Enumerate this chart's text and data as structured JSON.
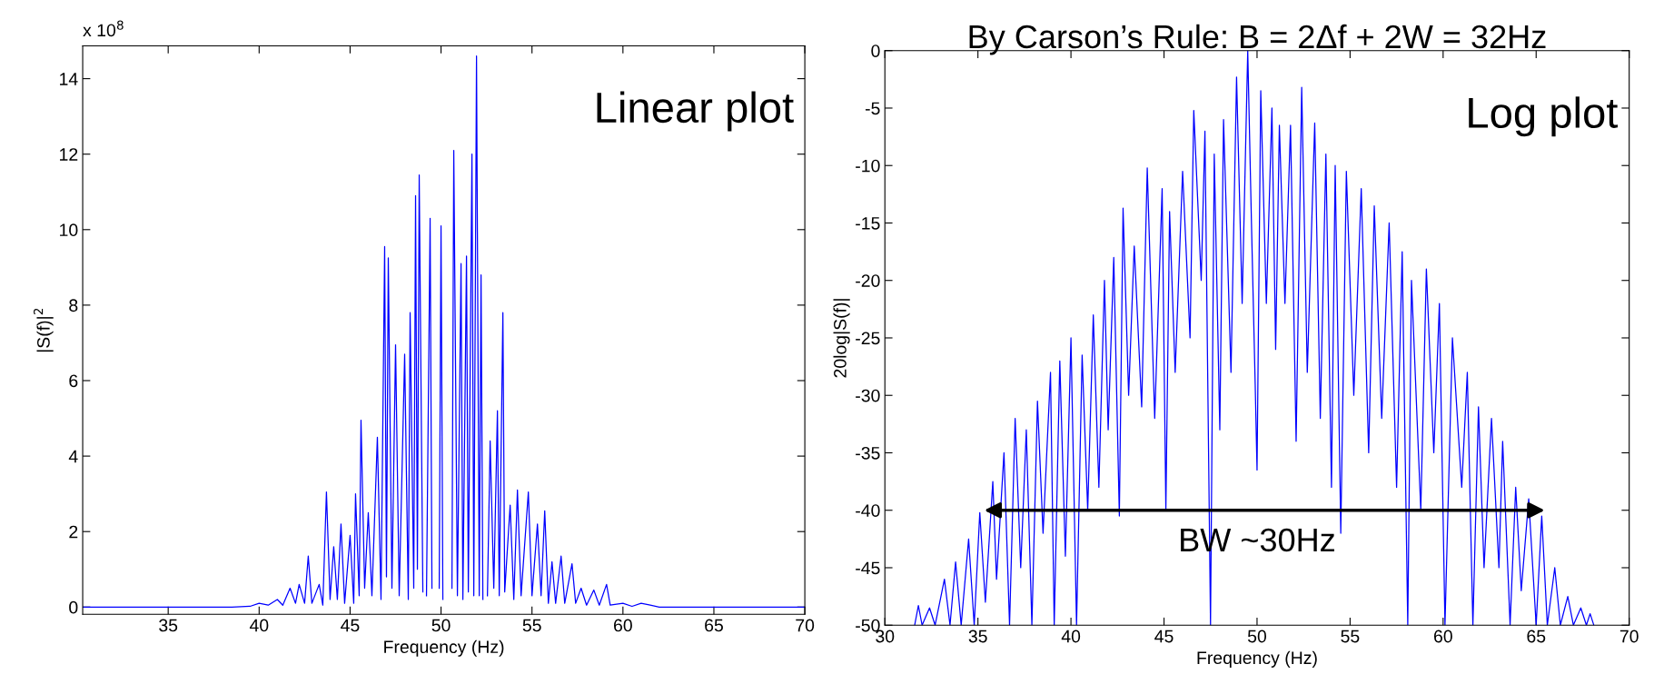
{
  "chart_data": [
    {
      "type": "line",
      "xlabel": "Frequency (Hz)",
      "ylabel": "|S(f)|$^{2}$",
      "annotations": [
        "x 10$^{8}$",
        "Linear plot"
      ],
      "xlim": [
        30.3,
        70
      ],
      "xticks": [
        35,
        40,
        45,
        50,
        55,
        60,
        65,
        70
      ],
      "ylim": [
        -0.19,
        14.87
      ],
      "yticks": [
        0,
        2,
        4,
        6,
        8,
        10,
        12,
        14
      ],
      "grid": false,
      "legend": false,
      "series": [
        {
          "color": "#0000ff",
          "x": [
            30.3,
            38.5,
            39.5,
            40,
            40.5,
            41,
            41.3,
            41.7,
            42,
            42.2,
            42.5,
            42.7,
            42.9,
            43.3,
            43.5,
            43.7,
            43.9,
            44.1,
            44.3,
            44.5,
            44.7,
            45,
            45.2,
            45.3,
            45.5,
            45.6,
            45.8,
            46,
            46.2,
            46.5,
            46.7,
            46.9,
            47.0,
            47.1,
            47.3,
            47.5,
            47.7,
            48,
            48.2,
            48.3,
            48.5,
            48.6,
            48.7,
            48.8,
            49,
            49.1,
            49.2,
            49.4,
            49.5,
            49.6,
            49.8,
            49.9,
            50,
            50.1,
            50.3,
            50.5,
            50.6,
            50.7,
            50.9,
            51.1,
            51.2,
            51.4,
            51.5,
            51.7,
            51.8,
            51.95,
            52.1,
            52.2,
            52.3,
            52.45,
            52.55,
            52.7,
            52.9,
            53.1,
            53.2,
            53.4,
            53.5,
            53.8,
            54,
            54.2,
            54.4,
            54.8,
            55,
            55.3,
            55.5,
            55.7,
            55.9,
            56.1,
            56.3,
            56.6,
            56.8,
            57.2,
            57.4,
            57.7,
            58,
            58.4,
            58.7,
            59.1,
            59.3,
            60,
            60.5,
            61,
            61.5,
            62,
            70
          ],
          "values": [
            0,
            0,
            0.02,
            0.1,
            0.05,
            0.2,
            0.05,
            0.5,
            0.1,
            0.6,
            0.1,
            1.35,
            0.1,
            0.6,
            0.05,
            3.05,
            0.2,
            1.6,
            0.2,
            2.2,
            0.1,
            1.9,
            0.1,
            3.0,
            0.3,
            4.95,
            0.5,
            2.5,
            0.3,
            4.5,
            0.2,
            9.55,
            0.8,
            9.25,
            0.5,
            6.95,
            0.3,
            6.7,
            0.2,
            7.8,
            0.5,
            10.9,
            1,
            11.45,
            0.4,
            null,
            0.3,
            10.3,
            0.5,
            null,
            null,
            0.5,
            10.1,
            0.2,
            null,
            null,
            0.5,
            12.1,
            0.3,
            9.1,
            0.2,
            9.3,
            0.4,
            12.0,
            0.3,
            14.6,
            0.3,
            8.8,
            0.2,
            null,
            0.3,
            4.4,
            0.5,
            5.2,
            0.3,
            7.8,
            0.4,
            2.7,
            0.2,
            3.1,
            0.3,
            3.05,
            0.3,
            2.2,
            0.3,
            2.55,
            0.1,
            1.2,
            0.1,
            1.35,
            0.1,
            1.15,
            0.1,
            0.5,
            0.05,
            0.45,
            0.05,
            0.6,
            0.05,
            0.1,
            0.02,
            0.1,
            0.05,
            0,
            0
          ]
        }
      ]
    },
    {
      "type": "line",
      "title": "By Carson’s Rule: B = 2Δf + 2W = 32Hz",
      "xlabel": "Frequency (Hz)",
      "ylabel": "20log|S(f)|",
      "annotations": [
        "Log plot",
        "BW ~30Hz"
      ],
      "xlim": [
        30,
        70
      ],
      "xticks": [
        30,
        35,
        40,
        45,
        50,
        55,
        60,
        65,
        70
      ],
      "ylim": [
        -50,
        0
      ],
      "yticks": [
        -50,
        -45,
        -40,
        -35,
        -30,
        -25,
        -20,
        -15,
        -10,
        -5,
        0
      ],
      "grid": false,
      "legend": false,
      "series": [
        {
          "color": "#0000ff",
          "x": [
            31.6,
            31.8,
            32,
            32.4,
            32.7,
            33.2,
            33.5,
            33.8,
            34.1,
            34.5,
            34.8,
            35.1,
            35.4,
            35.8,
            36,
            36.4,
            36.7,
            37,
            37.3,
            37.6,
            37.9,
            38.2,
            38.5,
            38.9,
            39.1,
            39.4,
            39.7,
            40,
            40.3,
            40.6,
            40.9,
            41.2,
            41.5,
            41.8,
            42,
            42.3,
            42.6,
            42.8,
            43.1,
            43.4,
            43.8,
            44.1,
            44.5,
            44.9,
            45.1,
            45.3,
            45.6,
            46,
            46.4,
            46.6,
            47,
            47.2,
            47.5,
            47.7,
            48,
            48.2,
            48.6,
            48.9,
            49.2,
            49.5,
            49.7,
            49.9,
            50,
            50.2,
            50.5,
            50.8,
            51,
            51.2,
            51.5,
            51.8,
            52.1,
            52.4,
            52.7,
            53.1,
            53.4,
            53.7,
            54,
            54.2,
            54.5,
            54.8,
            55.2,
            55.6,
            56,
            56.3,
            56.7,
            57.1,
            57.5,
            57.8,
            58.1,
            58.3,
            58.8,
            59.1,
            59.5,
            59.8,
            60.1,
            60.5,
            61,
            61.3,
            61.6,
            61.9,
            62.2,
            62.6,
            63,
            63.2,
            63.6,
            63.9,
            64.2,
            64.6,
            65,
            65.3,
            65.6,
            66,
            66.3,
            66.7,
            67,
            67.4,
            67.7,
            67.9,
            68.1
          ],
          "values": [
            -50,
            -48.3,
            -50,
            -48.5,
            -50,
            -46,
            -50,
            -44.5,
            -50,
            -42.5,
            -50,
            -40.2,
            -48,
            -37.5,
            -46,
            -35,
            -50,
            -32,
            -45,
            -33,
            -50,
            -30.5,
            -42,
            -28,
            -50,
            -27,
            -44,
            -25,
            -50,
            -26.5,
            -40,
            -23,
            -38,
            -20,
            -33,
            -18,
            -40.5,
            -13.7,
            -30,
            -17,
            -31,
            -10.2,
            -32,
            -12,
            -40,
            -14,
            -28,
            -10.5,
            -25,
            -5.2,
            -20,
            -7,
            -50,
            -9,
            -33,
            -6,
            -28,
            -2.3,
            -22,
            0,
            -15,
            -29,
            -36.5,
            -3.5,
            -22,
            -5,
            -26,
            -6.5,
            -22,
            -6.5,
            -34,
            -3.2,
            -28,
            -6.3,
            -32,
            -9,
            -38,
            -10,
            -42,
            -10.5,
            -30,
            -12,
            -35,
            -13.5,
            -32,
            -15,
            -38,
            -17.5,
            -50,
            -20,
            -40,
            -19,
            -35,
            -22,
            -50,
            -25,
            -38,
            -28,
            -50,
            -31,
            -45,
            -32,
            -45,
            -34,
            -50,
            -38,
            -47,
            -39,
            -50,
            -40.5,
            -50,
            -45,
            -50,
            -47.5,
            -50,
            -48.5,
            -50,
            -49,
            -50
          ]
        }
      ]
    }
  ]
}
